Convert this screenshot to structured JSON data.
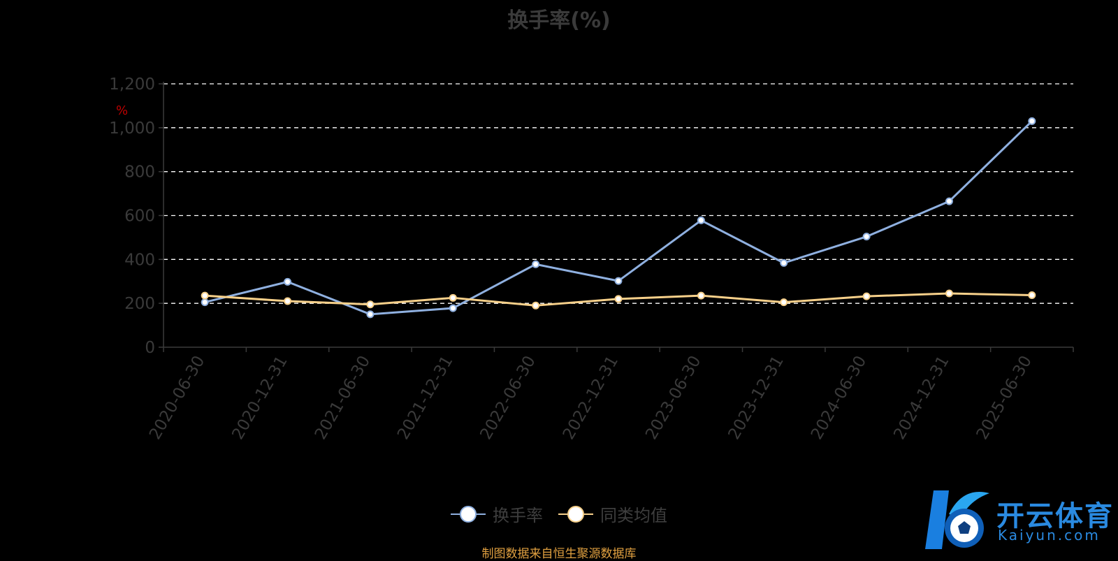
{
  "title": "换手率(%)",
  "unit_label": "%",
  "source_text": "制图数据来自恒生聚源数据库",
  "logo": {
    "cn": "开云体育",
    "en": "Kaiyun.com"
  },
  "colors": {
    "background": "#000000",
    "series_main": "#8fb0e0",
    "series_avg": "#f7d08a",
    "grid": "#ffffff",
    "axis": "#3a3a3a",
    "tick_text": "#3a3a3a"
  },
  "chart_data": {
    "type": "line",
    "title": "换手率(%)",
    "ylabel": "%",
    "ylim": [
      0,
      1200
    ],
    "yticks": [
      "0",
      "200",
      "400",
      "600",
      "800",
      "1,000",
      "1,200"
    ],
    "ytick_values": [
      0,
      200,
      400,
      600,
      800,
      1000,
      1200
    ],
    "grid": true,
    "legend_position": "bottom",
    "categories": [
      "2020-06-30",
      "2020-12-31",
      "2021-06-30",
      "2021-12-31",
      "2022-06-30",
      "2022-12-31",
      "2023-06-30",
      "2023-12-31",
      "2024-06-30",
      "2024-12-31",
      "2025-06-30"
    ],
    "series": [
      {
        "name": "换手率",
        "color": "#8fb0e0",
        "values": [
          205,
          298,
          150,
          178,
          378,
          302,
          578,
          384,
          504,
          665,
          1030
        ]
      },
      {
        "name": "同类均值",
        "color": "#f7d08a",
        "values": [
          235,
          210,
          195,
          225,
          190,
          220,
          235,
          205,
          232,
          245,
          237
        ]
      }
    ]
  }
}
